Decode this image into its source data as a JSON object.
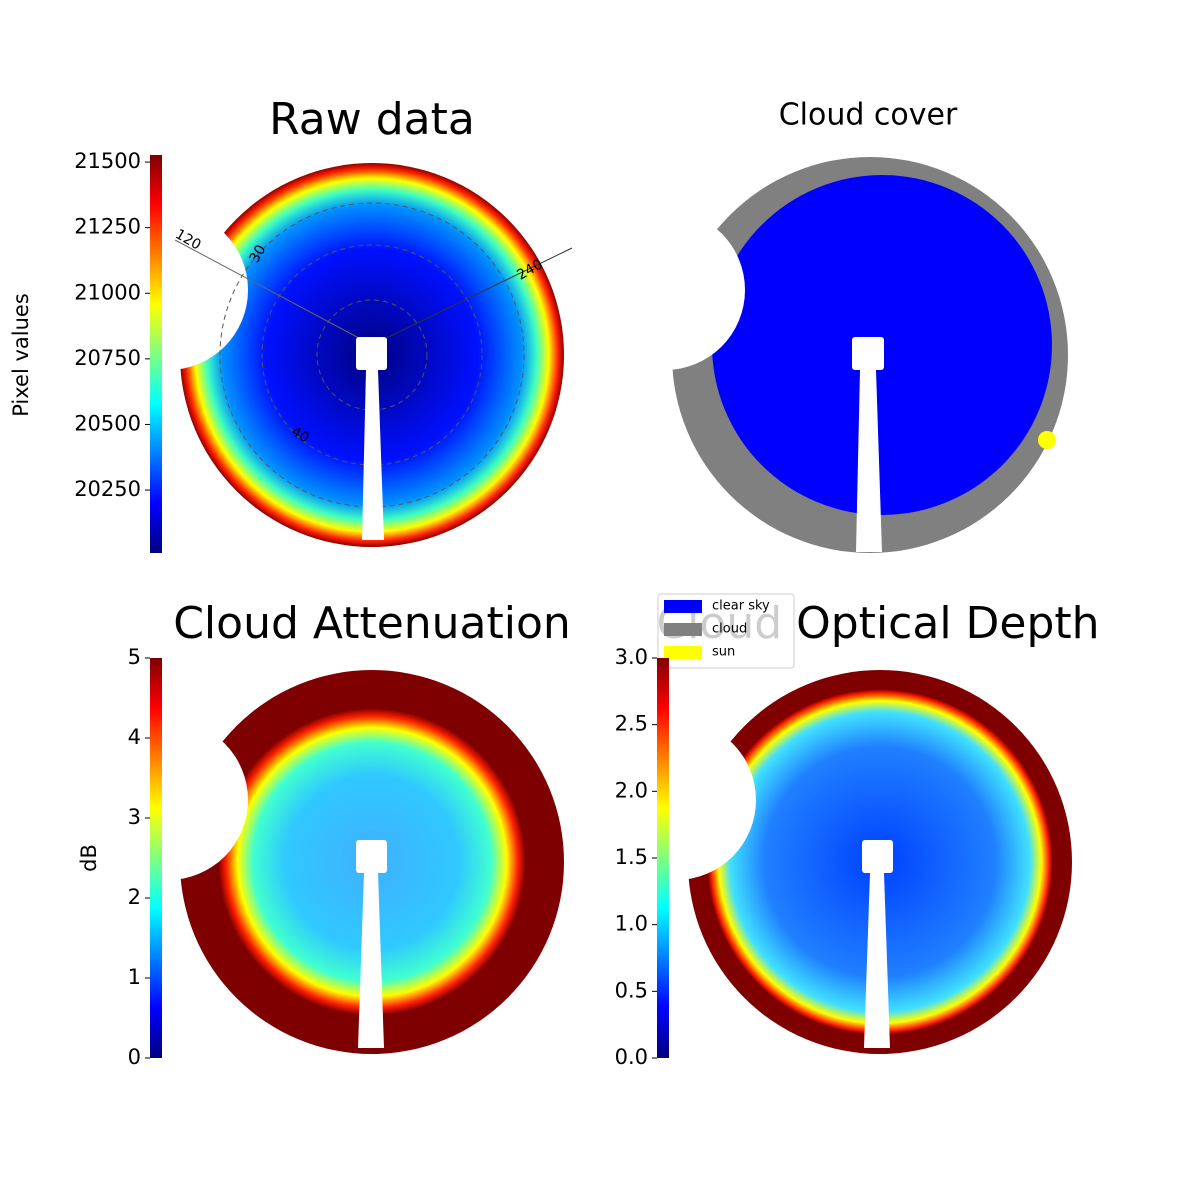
{
  "panels": [
    {
      "title": "Raw data",
      "colorbar": {
        "label": "Pixel values",
        "lim": [
          20010,
          21527
        ],
        "ticks": [
          20250,
          20500,
          20750,
          21000,
          21250,
          21500
        ]
      },
      "polar_labels": [
        "120",
        "30",
        "240",
        "40"
      ]
    },
    {
      "title": "Cloud cover",
      "legend": [
        {
          "name": "clear sky",
          "color": "#0000ff"
        },
        {
          "name": "cloud",
          "color": "#808080"
        },
        {
          "name": "sun",
          "color": "#ffff00"
        }
      ]
    },
    {
      "title": "Cloud Attenuation",
      "colorbar": {
        "label": "dB",
        "lim": [
          0,
          5
        ],
        "ticks": [
          0,
          1,
          2,
          3,
          4,
          5
        ]
      }
    },
    {
      "title": "Cloud Optical Depth",
      "colorbar": {
        "lim": [
          0,
          3
        ],
        "ticks": [
          {
            "value": 0,
            "label": "0.0"
          },
          0.5,
          {
            "value": 1,
            "label": "1.0"
          },
          1.5,
          {
            "value": 2,
            "label": "2.0"
          },
          2.5,
          {
            "value": 3,
            "label": "3.0"
          }
        ]
      }
    }
  ]
}
